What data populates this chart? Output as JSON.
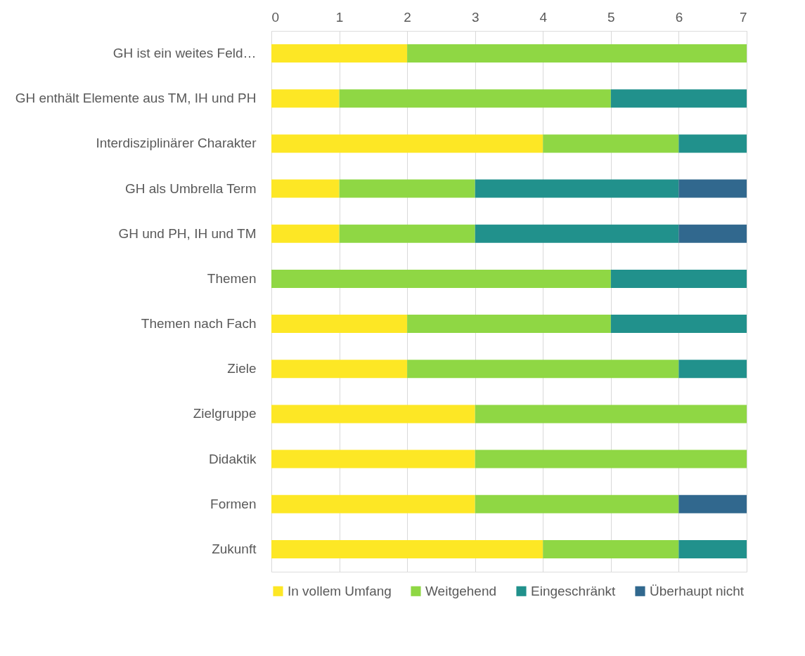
{
  "chart_data": {
    "type": "bar",
    "orientation": "horizontal",
    "stacked": true,
    "categories": [
      "GH ist ein weites Feld…",
      "GH enthält Elemente aus TM, IH und PH",
      "Interdisziplinärer Charakter",
      "GH als Umbrella Term",
      "GH und PH, IH und TM",
      "Themen",
      "Themen nach Fach",
      "Ziele",
      "Zielgruppe",
      "Didaktik",
      "Formen",
      "Zukunft"
    ],
    "series": [
      {
        "name": "In vollem Umfang",
        "color": "#fde725",
        "values": [
          2,
          1,
          4,
          1,
          1,
          0,
          2,
          2,
          3,
          3,
          3,
          4
        ]
      },
      {
        "name": "Weitgehend",
        "color": "#8fd744",
        "values": [
          5,
          4,
          2,
          2,
          2,
          5,
          3,
          4,
          4,
          4,
          3,
          2
        ]
      },
      {
        "name": "Eingeschränkt",
        "color": "#21918c",
        "values": [
          0,
          2,
          1,
          3,
          3,
          2,
          2,
          1,
          0,
          0,
          0,
          1
        ]
      },
      {
        "name": "Überhaupt nicht",
        "color": "#31688e",
        "values": [
          0,
          0,
          0,
          1,
          1,
          0,
          0,
          0,
          0,
          0,
          1,
          0
        ]
      }
    ],
    "xlim": [
      0,
      7
    ],
    "xticks": [
      0,
      1,
      2,
      3,
      4,
      5,
      6,
      7
    ],
    "grid": "x",
    "legend": "bottom"
  }
}
